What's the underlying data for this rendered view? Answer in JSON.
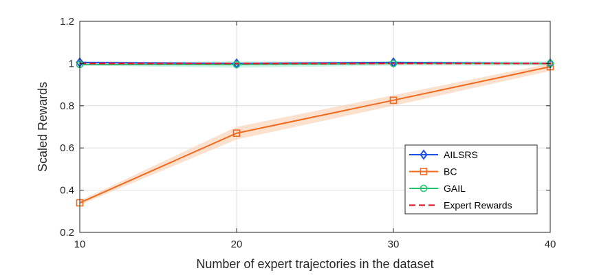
{
  "chart_data": {
    "type": "line",
    "title": "",
    "xlabel": "Number of expert trajectories in the dataset",
    "ylabel": "Scaled Rewards",
    "x": [
      10,
      20,
      30,
      40
    ],
    "xlim": [
      10,
      40
    ],
    "ylim": [
      0.2,
      1.2
    ],
    "xticks": [
      "10",
      "20",
      "30",
      "40"
    ],
    "yticks": [
      "0.2",
      "0.4",
      "0.6",
      "0.8",
      "1",
      "1.2"
    ],
    "grid": true,
    "legend_position": "lower-right",
    "series": [
      {
        "name": "AILSRS",
        "color": "#1f4fe0",
        "marker": "diamond",
        "values": [
          1.005,
          1.0,
          1.005,
          1.0
        ],
        "band": [
          [
            1.0,
            1.01
          ],
          [
            0.995,
            1.005
          ],
          [
            1.0,
            1.01
          ],
          [
            0.995,
            1.005
          ]
        ],
        "band_color": "#7fa8e8"
      },
      {
        "name": "BC",
        "color": "#f06a1e",
        "marker": "square",
        "values": [
          0.34,
          0.67,
          0.826,
          0.985
        ],
        "band": [
          [
            0.33,
            0.35
          ],
          [
            0.64,
            0.7
          ],
          [
            0.8,
            0.85
          ],
          [
            0.965,
            1.0
          ]
        ],
        "band_color": "#f9c8a8"
      },
      {
        "name": "GAIL",
        "color": "#1ec46e",
        "marker": "circle",
        "values": [
          0.995,
          0.995,
          1.0,
          1.0
        ],
        "band": [
          [
            0.99,
            1.005
          ],
          [
            0.98,
            1.01
          ],
          [
            0.99,
            1.01
          ],
          [
            0.99,
            1.01
          ]
        ],
        "band_color": "#a8ecd8"
      },
      {
        "name": "Expert Rewards",
        "color": "#e11d2a",
        "marker": "none",
        "dashed": true,
        "values": [
          1.0,
          1.0,
          1.0,
          1.0
        ]
      }
    ]
  }
}
